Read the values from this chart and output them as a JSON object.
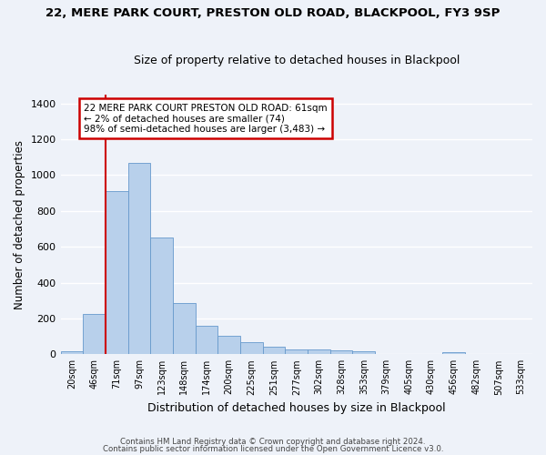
{
  "title1": "22, MERE PARK COURT, PRESTON OLD ROAD, BLACKPOOL, FY3 9SP",
  "title2": "Size of property relative to detached houses in Blackpool",
  "xlabel": "Distribution of detached houses by size in Blackpool",
  "ylabel": "Number of detached properties",
  "bar_labels": [
    "20sqm",
    "46sqm",
    "71sqm",
    "97sqm",
    "123sqm",
    "148sqm",
    "174sqm",
    "200sqm",
    "225sqm",
    "251sqm",
    "277sqm",
    "302sqm",
    "328sqm",
    "353sqm",
    "379sqm",
    "405sqm",
    "430sqm",
    "456sqm",
    "482sqm",
    "507sqm",
    "533sqm"
  ],
  "bar_values": [
    15,
    225,
    910,
    1070,
    650,
    285,
    160,
    105,
    70,
    40,
    28,
    25,
    20,
    16,
    0,
    0,
    0,
    10,
    0,
    0,
    0
  ],
  "bar_color": "#b8d0eb",
  "bar_edgecolor": "#6699cc",
  "vline_x": 1.5,
  "vline_color": "#cc0000",
  "annotation_text": "22 MERE PARK COURT PRESTON OLD ROAD: 61sqm\n← 2% of detached houses are smaller (74)\n98% of semi-detached houses are larger (3,483) →",
  "annotation_box_color": "#ffffff",
  "annotation_box_edgecolor": "#cc0000",
  "footer1": "Contains HM Land Registry data © Crown copyright and database right 2024.",
  "footer2": "Contains public sector information licensed under the Open Government Licence v3.0.",
  "ylim": [
    0,
    1450
  ],
  "background_color": "#eef2f9",
  "grid_color": "#ffffff",
  "yticks": [
    0,
    200,
    400,
    600,
    800,
    1000,
    1200,
    1400
  ]
}
